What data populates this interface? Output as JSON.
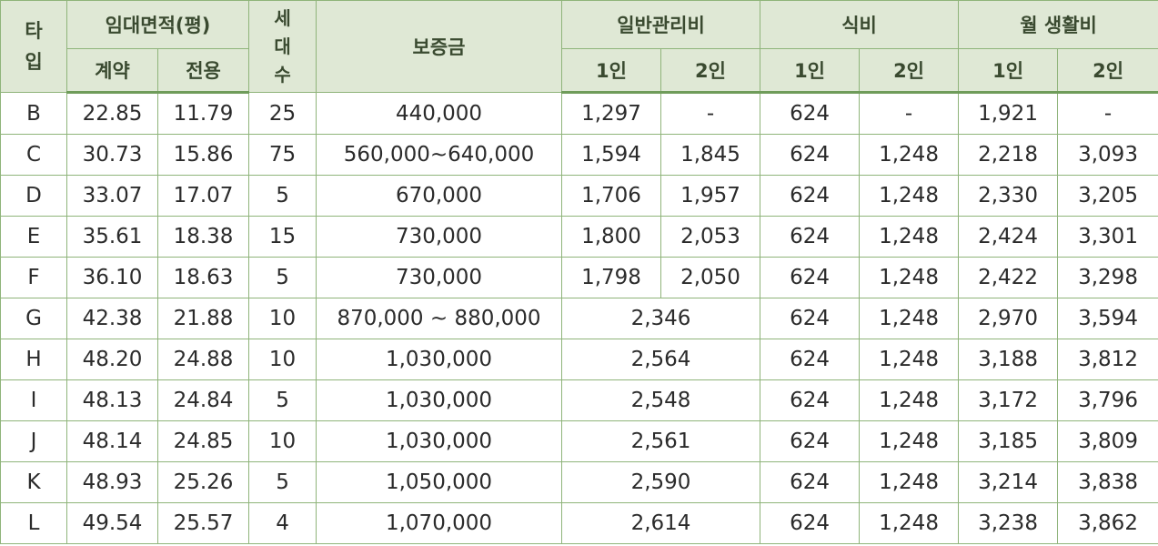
{
  "header": {
    "type": "타\n입",
    "area": "임대면적(평)",
    "area_contract": "계약",
    "area_exclusive": "전용",
    "households": "세\n대\n수",
    "deposit": "보증금",
    "mgmt": "일반관리비",
    "food": "식비",
    "living": "월 생활비",
    "one": "1인",
    "two": "2인"
  },
  "rows": [
    {
      "type": "B",
      "contract": "22.85",
      "exclusive": "11.79",
      "households": "25",
      "deposit": "440,000",
      "mgmt1": "1,297",
      "mgmt2": "-",
      "food1": "624",
      "food2": "-",
      "living1": "1,921",
      "living2": "-"
    },
    {
      "type": "C",
      "contract": "30.73",
      "exclusive": "15.86",
      "households": "75",
      "deposit": "560,000~640,000",
      "mgmt1": "1,594",
      "mgmt2": "1,845",
      "food1": "624",
      "food2": "1,248",
      "living1": "2,218",
      "living2": "3,093"
    },
    {
      "type": "D",
      "contract": "33.07",
      "exclusive": "17.07",
      "households": "5",
      "deposit": "670,000",
      "mgmt1": "1,706",
      "mgmt2": "1,957",
      "food1": "624",
      "food2": "1,248",
      "living1": "2,330",
      "living2": "3,205"
    },
    {
      "type": "E",
      "contract": "35.61",
      "exclusive": "18.38",
      "households": "15",
      "deposit": "730,000",
      "mgmt1": "1,800",
      "mgmt2": "2,053",
      "food1": "624",
      "food2": "1,248",
      "living1": "2,424",
      "living2": "3,301"
    },
    {
      "type": "F",
      "contract": "36.10",
      "exclusive": "18.63",
      "households": "5",
      "deposit": "730,000",
      "mgmt1": "1,798",
      "mgmt2": "2,050",
      "food1": "624",
      "food2": "1,248",
      "living1": "2,422",
      "living2": "3,298"
    },
    {
      "type": "G",
      "contract": "42.38",
      "exclusive": "21.88",
      "households": "10",
      "deposit": "870,000 ~ 880,000",
      "mgmt": "2,346",
      "food1": "624",
      "food2": "1,248",
      "living1": "2,970",
      "living2": "3,594"
    },
    {
      "type": "H",
      "contract": "48.20",
      "exclusive": "24.88",
      "households": "10",
      "deposit": "1,030,000",
      "mgmt": "2,564",
      "food1": "624",
      "food2": "1,248",
      "living1": "3,188",
      "living2": "3,812"
    },
    {
      "type": "I",
      "contract": "48.13",
      "exclusive": "24.84",
      "households": "5",
      "deposit": "1,030,000",
      "mgmt": "2,548",
      "food1": "624",
      "food2": "1,248",
      "living1": "3,172",
      "living2": "3,796"
    },
    {
      "type": "J",
      "contract": "48.14",
      "exclusive": "24.85",
      "households": "10",
      "deposit": "1,030,000",
      "mgmt": "2,561",
      "food1": "624",
      "food2": "1,248",
      "living1": "3,185",
      "living2": "3,809"
    },
    {
      "type": "K",
      "contract": "48.93",
      "exclusive": "25.26",
      "households": "5",
      "deposit": "1,050,000",
      "mgmt": "2,590",
      "food1": "624",
      "food2": "1,248",
      "living1": "3,214",
      "living2": "3,838"
    },
    {
      "type": "L",
      "contract": "49.54",
      "exclusive": "25.57",
      "households": "4",
      "deposit": "1,070,000",
      "mgmt": "2,614",
      "food1": "624",
      "food2": "1,248",
      "living1": "3,238",
      "living2": "3,862"
    }
  ]
}
